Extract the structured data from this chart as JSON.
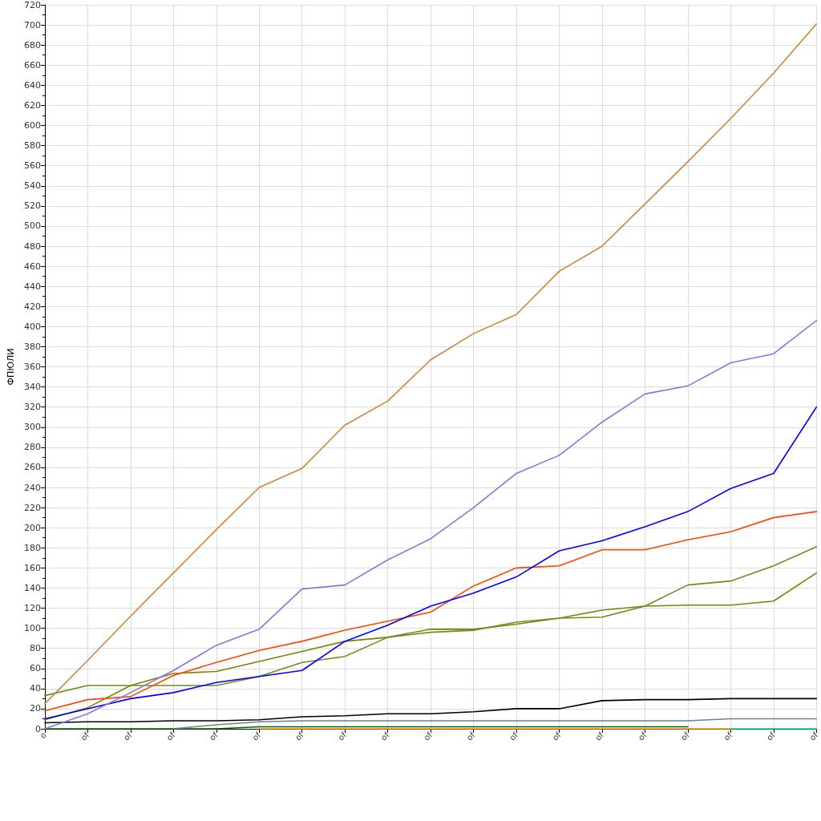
{
  "chart_data": {
    "type": "line",
    "ylabel": "ФПЮЛИ",
    "categories": [
      "o",
      "of",
      "of",
      "of",
      "of",
      "of",
      "of",
      "of",
      "of",
      "of",
      "of",
      "of",
      "of",
      "of",
      "of",
      "of",
      "of",
      "of",
      "of"
    ],
    "ylim": [
      0,
      720
    ],
    "yticks": [
      0,
      {
        "value": 10,
        "label": null
      },
      20,
      {
        "value": 30,
        "label": null
      },
      40,
      {
        "value": 50,
        "label": null
      },
      60,
      {
        "value": 70,
        "label": null
      },
      80,
      {
        "value": 90,
        "label": null
      },
      100,
      {
        "value": 110,
        "label": null
      },
      120,
      {
        "value": 130,
        "label": null
      },
      140,
      {
        "value": 150,
        "label": null
      },
      160,
      {
        "value": 170,
        "label": null
      },
      180,
      {
        "value": 190,
        "label": null
      },
      200,
      {
        "value": 210,
        "label": null
      },
      220,
      {
        "value": 230,
        "label": null
      },
      240,
      {
        "value": 250,
        "label": null
      },
      260,
      {
        "value": 270,
        "label": null
      },
      280,
      {
        "value": 290,
        "label": null
      },
      300,
      {
        "value": 310,
        "label": null
      },
      320,
      {
        "value": 330,
        "label": null
      },
      340,
      {
        "value": 350,
        "label": null
      },
      360,
      {
        "value": 370,
        "label": null
      },
      380,
      {
        "value": 390,
        "label": null
      },
      400,
      {
        "value": 410,
        "label": null
      },
      420,
      {
        "value": 430,
        "label": null
      },
      440,
      {
        "value": 450,
        "label": null
      },
      460,
      {
        "value": 470,
        "label": null
      },
      480,
      {
        "value": 490,
        "label": null
      },
      500,
      {
        "value": 510,
        "label": null
      },
      520,
      {
        "value": 530,
        "label": null
      },
      540,
      {
        "value": 550,
        "label": null
      },
      560,
      {
        "value": 570,
        "label": null
      },
      580,
      {
        "value": 590,
        "label": null
      },
      600,
      {
        "value": 610,
        "label": null
      },
      620,
      {
        "value": 630,
        "label": null
      },
      640,
      {
        "value": 650,
        "label": null
      },
      660,
      {
        "value": 670,
        "label": null
      },
      680,
      {
        "value": 690,
        "label": null
      },
      700,
      {
        "value": 710,
        "label": null
      },
      720
    ],
    "grid": true,
    "marker": "none",
    "series": [
      {
        "color": "#00ee76",
        "values": [
          null,
          null,
          null,
          null,
          null,
          null,
          null,
          null,
          null,
          null,
          null,
          null,
          null,
          null,
          null,
          null,
          0,
          0,
          0
        ]
      },
      {
        "color": "#ffa500",
        "values": [
          null,
          null,
          null,
          null,
          null,
          0,
          0,
          0,
          0,
          0,
          0,
          0,
          0,
          0,
          0,
          0,
          0,
          null,
          null
        ]
      },
      {
        "color": "#006400",
        "values": [
          0,
          0,
          0,
          0,
          0,
          2,
          2,
          2,
          2,
          2,
          2,
          2,
          2,
          2,
          2,
          2,
          null,
          null,
          null
        ]
      },
      {
        "color": "#708090",
        "values": [
          null,
          null,
          null,
          0,
          4,
          7,
          8,
          8,
          8,
          8,
          8,
          8,
          8,
          8,
          8,
          8,
          10,
          10,
          10
        ]
      },
      {
        "color": "#000000",
        "values": [
          6,
          7,
          7,
          8,
          8,
          9,
          12,
          13,
          15,
          15,
          17,
          20,
          20,
          28,
          29,
          29,
          30,
          30,
          30
        ]
      },
      {
        "color": "#808000",
        "values": [
          9,
          21,
          43,
          55,
          57,
          67,
          77,
          87,
          91,
          99,
          99,
          104,
          110,
          118,
          122,
          123,
          123,
          127,
          155
        ]
      },
      {
        "color": "#6b8e23",
        "values": [
          33,
          43,
          43,
          43,
          43,
          52,
          66,
          72,
          91,
          96,
          98,
          106,
          110,
          111,
          122,
          143,
          147,
          162,
          181
        ]
      },
      {
        "color": "#ff4500",
        "values": [
          18,
          29,
          32,
          53,
          66,
          78,
          87,
          98,
          107,
          116,
          142,
          160,
          162,
          178,
          178,
          188,
          196,
          210,
          216
        ]
      },
      {
        "color": "#0000ff",
        "values": [
          10,
          20,
          30,
          36,
          46,
          52,
          58,
          87,
          103,
          122,
          135,
          151,
          177,
          187,
          201,
          216,
          239,
          254,
          320
        ]
      },
      {
        "color": "#9370db",
        "values": [
          0,
          15,
          36,
          58,
          83,
          99,
          139,
          143,
          168,
          189,
          220,
          254,
          272,
          305,
          333,
          341,
          364,
          373,
          406
        ]
      },
      {
        "color": "#cd853f",
        "values": [
          25,
          68,
          112,
          155,
          198,
          240,
          259,
          302,
          326,
          367,
          393,
          412,
          455,
          480,
          522,
          564,
          607,
          652,
          701
        ]
      }
    ]
  }
}
